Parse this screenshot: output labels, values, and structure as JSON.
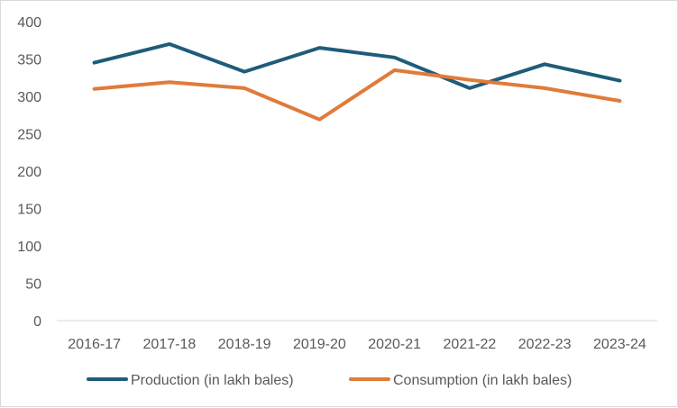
{
  "chart_data": {
    "type": "line",
    "title": "",
    "xlabel": "",
    "ylabel": "",
    "categories": [
      "2016-17",
      "2017-18",
      "2018-19",
      "2019-20",
      "2020-21",
      "2021-22",
      "2022-23",
      "2023-24"
    ],
    "series": [
      {
        "name": "Production (in lakh bales)",
        "color": "#1f5c7a",
        "values": [
          345,
          370,
          333,
          365,
          352,
          311,
          343,
          321
        ]
      },
      {
        "name": "Consumption (in lakh bales)",
        "color": "#e07b3a",
        "values": [
          310,
          319,
          311,
          269,
          335,
          322,
          311,
          294
        ]
      }
    ],
    "ylim": [
      0,
      400
    ],
    "yticks": [
      0,
      50,
      100,
      150,
      200,
      250,
      300,
      350,
      400
    ],
    "ytick_labels": [
      "0",
      "50",
      "100",
      "150",
      "200",
      "250",
      "300",
      "350",
      "400"
    ],
    "grid": false,
    "legend_position": "bottom"
  }
}
